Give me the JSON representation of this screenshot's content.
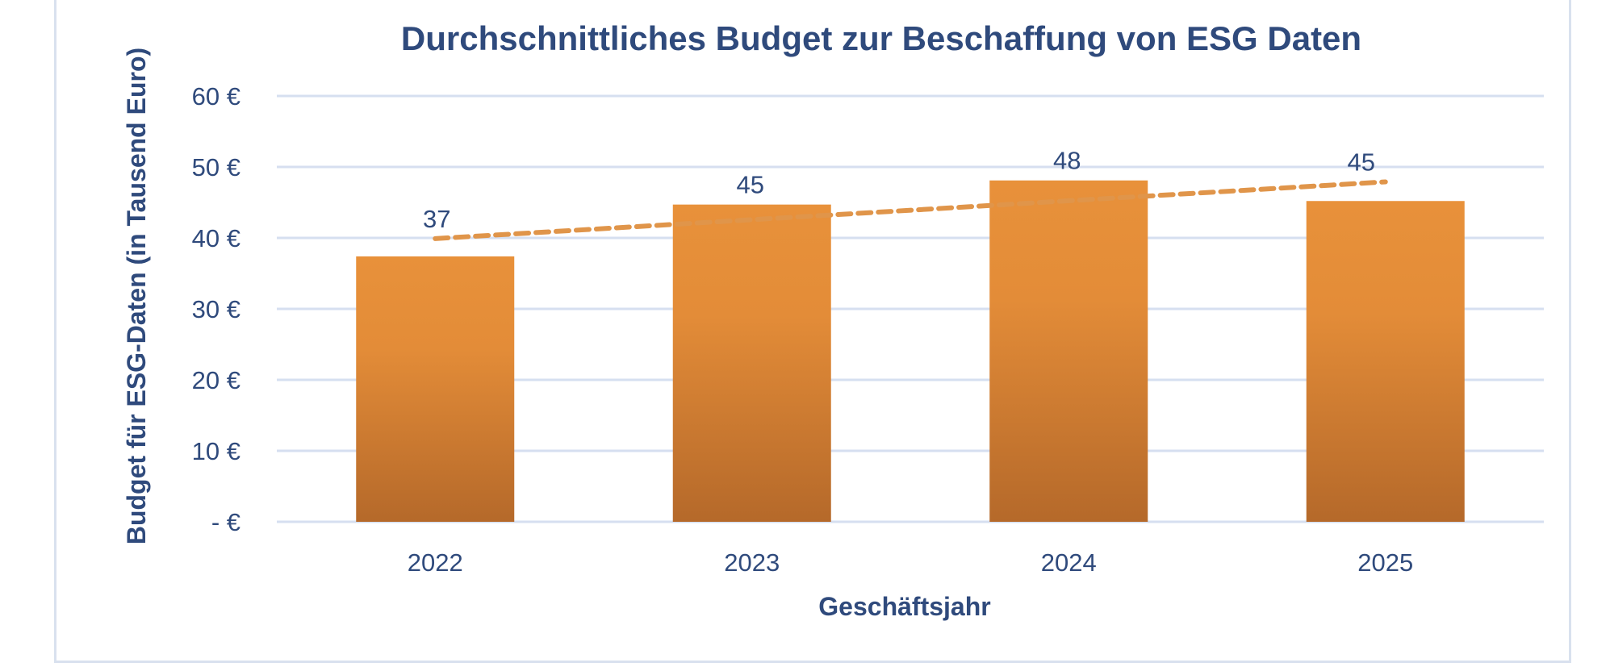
{
  "chart_data": {
    "type": "bar",
    "title": "Durchschnittliches Budget zur Beschaffung von ESG Daten",
    "xlabel": "Geschäftsjahr",
    "ylabel": "Budget für ESG-Daten (in Tausend Euro)",
    "categories": [
      "2022",
      "2023",
      "2024",
      "2025"
    ],
    "values": [
      37.4,
      44.7,
      48.1,
      45.2
    ],
    "data_labels": [
      "37",
      "45",
      "48",
      "45"
    ],
    "ylim": [
      0,
      60
    ],
    "yticks": [
      0,
      10,
      20,
      30,
      40,
      50,
      60
    ],
    "ytick_labels": [
      "- €",
      "10 €",
      "20 €",
      "30 €",
      "40 €",
      "50 €",
      "60 €"
    ],
    "trendline": {
      "type": "linear",
      "style": "dashed",
      "start_value": 39.9,
      "end_value": 47.9
    },
    "grid": true,
    "legend": "none",
    "colors": {
      "bar_top": "#e8913a",
      "bar_bottom": "#b5692a",
      "trendline": "#e0954a",
      "grid": "#d6dff0",
      "text": "#2f4a7c"
    }
  }
}
